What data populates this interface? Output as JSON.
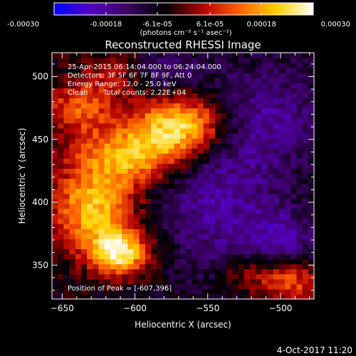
{
  "chart_data": {
    "type": "heatmap",
    "title": "Reconstructed RHESSI Image",
    "colorbar": {
      "ticks": [
        "-0.00030",
        "-0.00018",
        "-6.1e-05",
        "6.1e-05",
        "0.00018",
        "0.00030"
      ],
      "range": [
        -0.0003,
        0.0003
      ],
      "unit_label": "(photons cm⁻² s⁻¹ asec⁻²)",
      "colormap": [
        "#0000ff",
        "#5500c0",
        "#3a0060",
        "#000000",
        "#b00000",
        "#ff6000",
        "#ffd000",
        "#ffffff"
      ]
    },
    "annotations": {
      "time": "25-Apr-2015 06:14:04.000 to 06:24:04.000",
      "detectors": "Detectors: 3F 5F 6F 7F 8F 9F, Att 0",
      "energy": "Energy Range: 12.0 - 25.0 keV",
      "clean": "Clean",
      "counts": "Total counts: 2.22E+04",
      "peak": "Position of Peak = [-607,396]"
    },
    "xlabel": "Heliocentric X (arcsec)",
    "ylabel": "Heliocentric Y (arcsec)",
    "xlim": [
      -657,
      -477
    ],
    "ylim": [
      323,
      519
    ],
    "xticks": [
      -650,
      -600,
      -550,
      -500
    ],
    "yticks": [
      350,
      400,
      450,
      500
    ],
    "xtick_labels": [
      "−650",
      "−600",
      "−550",
      "−500"
    ],
    "yticks_labels": [
      "350",
      "400",
      "450",
      "500"
    ],
    "grid": false,
    "peak": [
      -607,
      396
    ],
    "emission_sources": [
      {
        "x": -568,
        "y": 462,
        "sx": 22,
        "sy": 16,
        "amp": 0.0003
      },
      {
        "x": -600,
        "y": 438,
        "sx": 26,
        "sy": 16,
        "amp": 0.00024
      },
      {
        "x": -628,
        "y": 395,
        "sx": 20,
        "sy": 24,
        "amp": 0.00026
      },
      {
        "x": -610,
        "y": 360,
        "sx": 14,
        "sy": 12,
        "amp": 0.0003
      },
      {
        "x": -638,
        "y": 475,
        "sx": 18,
        "sy": 14,
        "amp": 0.00016
      },
      {
        "x": -615,
        "y": 502,
        "sx": 16,
        "sy": 12,
        "amp": 0.0001
      },
      {
        "x": -495,
        "y": 338,
        "sx": 16,
        "sy": 12,
        "amp": 0.00018
      },
      {
        "x": -525,
        "y": 345,
        "sx": 12,
        "sy": 10,
        "amp": 9e-05
      }
    ],
    "absorption_sources": [
      {
        "x": -545,
        "y": 405,
        "sx": 30,
        "sy": 45,
        "amp": -0.00013
      },
      {
        "x": -505,
        "y": 470,
        "sx": 28,
        "sy": 30,
        "amp": -0.00011
      },
      {
        "x": -580,
        "y": 505,
        "sx": 20,
        "sy": 12,
        "amp": -9e-05
      },
      {
        "x": -500,
        "y": 370,
        "sx": 18,
        "sy": 18,
        "amp": -0.00012
      }
    ]
  },
  "footer": {
    "date": "4-Oct-2017 11:20"
  }
}
